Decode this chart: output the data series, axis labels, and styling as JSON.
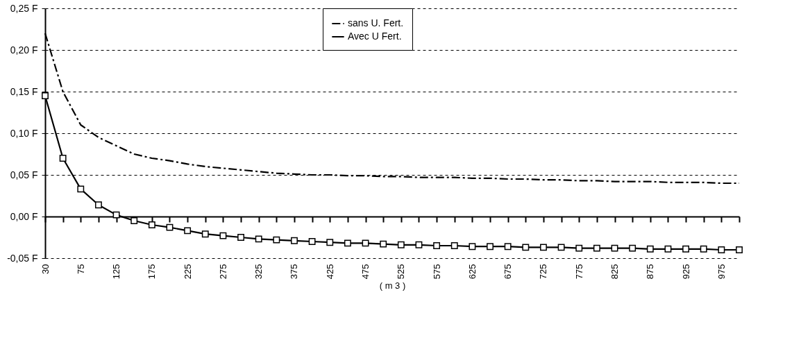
{
  "chart_data": {
    "type": "line",
    "xlabel": "( m 3 )",
    "categories": [
      "30",
      null,
      "75",
      null,
      "125",
      null,
      "175",
      null,
      "225",
      null,
      "275",
      null,
      "325",
      null,
      "375",
      null,
      "425",
      null,
      "475",
      null,
      "525",
      null,
      "575",
      null,
      "625",
      null,
      "675",
      null,
      "725",
      null,
      "775",
      null,
      "825",
      null,
      "875",
      null,
      "925",
      null,
      "975",
      null
    ],
    "series": [
      {
        "name": "sans U. Fert.",
        "color": "#000000",
        "marker": "none",
        "line_style": "dashed",
        "values": [
          0.22,
          0.15,
          0.11,
          0.095,
          0.085,
          0.075,
          0.07,
          0.067,
          0.063,
          0.06,
          0.058,
          0.056,
          0.054,
          0.052,
          0.051,
          0.05,
          0.05,
          0.049,
          0.049,
          0.048,
          0.048,
          0.047,
          0.047,
          0.047,
          0.046,
          0.046,
          0.045,
          0.045,
          0.044,
          0.044,
          0.043,
          0.043,
          0.042,
          0.042,
          0.042,
          0.041,
          0.041,
          0.041,
          0.04,
          0.04
        ]
      },
      {
        "name": "Avec U Fert.",
        "color": "#000000",
        "marker": "square",
        "line_style": "solid",
        "values": [
          0.145,
          0.07,
          0.033,
          0.014,
          0.002,
          -0.005,
          -0.01,
          -0.013,
          -0.017,
          -0.021,
          -0.023,
          -0.025,
          -0.027,
          -0.028,
          -0.029,
          -0.03,
          -0.031,
          -0.032,
          -0.032,
          -0.033,
          -0.034,
          -0.034,
          -0.035,
          -0.035,
          -0.036,
          -0.036,
          -0.036,
          -0.037,
          -0.037,
          -0.037,
          -0.038,
          -0.038,
          -0.038,
          -0.038,
          -0.039,
          -0.039,
          -0.039,
          -0.039,
          -0.04,
          -0.04
        ]
      }
    ],
    "ylim": [
      -0.05,
      0.25
    ],
    "yticks": [
      {
        "value": -0.05,
        "label": "-0,05  F"
      },
      {
        "value": 0,
        "label": "0,00  F"
      },
      {
        "value": 0.05,
        "label": "0,05  F"
      },
      {
        "value": 0.1,
        "label": "0,10  F"
      },
      {
        "value": 0.15,
        "label": "0,15  F"
      },
      {
        "value": 0.2,
        "label": "0,20  F"
      },
      {
        "value": 0.25,
        "label": "0,25  F"
      }
    ],
    "grid": "y",
    "legend": "top"
  }
}
